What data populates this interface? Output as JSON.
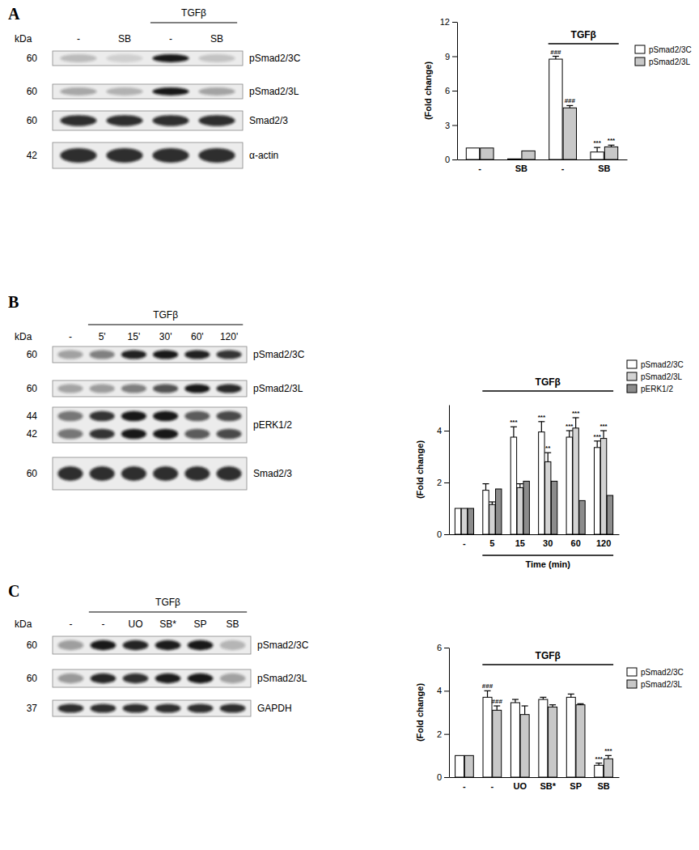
{
  "panels": [
    {
      "label": "A",
      "blot": {
        "kda_label": "kDa",
        "groups": [
          {
            "text": "TGFβ",
            "from": 2,
            "to": 3
          }
        ],
        "lanes": [
          "-",
          "SB",
          "-",
          "SB"
        ],
        "rows": [
          {
            "kda": [
              60
            ],
            "label": "pSmad2/3C"
          },
          {
            "kda": [
              60
            ],
            "label": "pSmad2/3L"
          },
          {
            "kda": [
              60
            ],
            "label": "Smad2/3"
          },
          {
            "kda": [
              42
            ],
            "label": "α-actin"
          }
        ]
      }
    },
    {
      "label": "B",
      "blot": {
        "kda_label": "kDa",
        "groups": [
          {
            "text": "TGFβ",
            "from": 1,
            "to": 5
          }
        ],
        "lanes": [
          "-",
          "5'",
          "15'",
          "30'",
          "60'",
          "120'"
        ],
        "rows": [
          {
            "kda": [
              60
            ],
            "label": "pSmad2/3C"
          },
          {
            "kda": [
              60
            ],
            "label": "pSmad2/3L"
          },
          {
            "kda": [
              44,
              42
            ],
            "label": "pERK1/2"
          },
          {
            "kda": [
              60
            ],
            "label": "Smad2/3"
          }
        ]
      }
    },
    {
      "label": "C",
      "blot": {
        "kda_label": "kDa",
        "groups": [
          {
            "text": "TGFβ",
            "from": 1,
            "to": 5
          }
        ],
        "lanes": [
          "-",
          "-",
          "UO",
          "SB*",
          "SP",
          "SB"
        ],
        "rows": [
          {
            "kda": [
              60
            ],
            "label": "pSmad2/3C"
          },
          {
            "kda": [
              60
            ],
            "label": "pSmad2/3L"
          },
          {
            "kda": [
              37
            ],
            "label": "GAPDH"
          }
        ]
      }
    }
  ],
  "chart_data": [
    {
      "type": "bar",
      "ylabel": "(Fold change)",
      "legend": "upper right",
      "categories": [
        "-",
        "SB",
        "-",
        "SB"
      ],
      "ylim": [
        0,
        12
      ],
      "yticks": [
        0,
        3,
        6,
        9,
        12
      ],
      "group_labels": [
        {
          "text": "TGFβ",
          "from": 2,
          "to": 3
        }
      ],
      "series": [
        {
          "name": "pSmad2/3C",
          "color": "#ffffff",
          "values": [
            1,
            0.05,
            8.75,
            0.65
          ],
          "errors": [
            null,
            null,
            0.25,
            0.4
          ]
        },
        {
          "name": "pSmad2/3L",
          "color": "#c8c8c8",
          "values": [
            1,
            0.75,
            4.5,
            1.1
          ],
          "errors": [
            null,
            null,
            0.2,
            0.15
          ]
        }
      ],
      "annotations": [
        {
          "series": 0,
          "index": 2,
          "text": "###"
        },
        {
          "series": 1,
          "index": 2,
          "text": "###"
        },
        {
          "series": 0,
          "index": 3,
          "text": "***"
        },
        {
          "series": 1,
          "index": 3,
          "text": "***"
        }
      ]
    },
    {
      "type": "bar",
      "ylabel": "(Fold change)",
      "xlabel": "Time (min)",
      "legend": "upper right",
      "categories": [
        "-",
        "5",
        "15",
        "30",
        "60",
        "120"
      ],
      "ylim": [
        0,
        5
      ],
      "yticks": [
        0,
        2,
        4
      ],
      "group_labels": [
        {
          "text": "TGFβ",
          "from": 1,
          "to": 5
        }
      ],
      "series": [
        {
          "name": "pSmad2/3C",
          "color": "#ffffff",
          "values": [
            1,
            1.7,
            3.75,
            3.95,
            3.75,
            3.35
          ],
          "errors": [
            null,
            0.25,
            0.4,
            0.4,
            0.25,
            0.25
          ]
        },
        {
          "name": "pSmad2/3L",
          "color": "#d3d3d3",
          "values": [
            1,
            1.15,
            1.8,
            2.8,
            4.1,
            3.7
          ],
          "errors": [
            null,
            0.1,
            0.15,
            0.35,
            0.4,
            0.3
          ]
        },
        {
          "name": "pERK1/2",
          "color": "#8c8c8c",
          "values": [
            1,
            1.75,
            2.05,
            2.05,
            1.3,
            1.5
          ]
        }
      ],
      "annotations": [
        {
          "series": 0,
          "index": 2,
          "text": "***"
        },
        {
          "series": 0,
          "index": 3,
          "text": "***"
        },
        {
          "series": 0,
          "index": 4,
          "text": "***"
        },
        {
          "series": 0,
          "index": 5,
          "text": "***"
        },
        {
          "series": 1,
          "index": 3,
          "text": "**"
        },
        {
          "series": 1,
          "index": 4,
          "text": "***"
        },
        {
          "series": 1,
          "index": 5,
          "text": "***"
        }
      ]
    },
    {
      "type": "bar",
      "ylabel": "(Fold change)",
      "legend": "upper right",
      "categories": [
        "-",
        "-",
        "UO",
        "SB*",
        "SP",
        "SB"
      ],
      "ylim": [
        0,
        6
      ],
      "yticks": [
        0,
        2,
        4,
        6
      ],
      "group_labels": [
        {
          "text": "TGFβ",
          "from": 1,
          "to": 5
        }
      ],
      "series": [
        {
          "name": "pSmad2/3C",
          "color": "#ffffff",
          "values": [
            1,
            3.7,
            3.45,
            3.6,
            3.7,
            0.55
          ],
          "errors": [
            null,
            0.3,
            0.15,
            0.1,
            0.15,
            0.1
          ]
        },
        {
          "name": "pSmad2/3L",
          "color": "#c8c8c8",
          "values": [
            1,
            3.1,
            2.9,
            3.25,
            3.35,
            0.85
          ],
          "errors": [
            null,
            0.2,
            0.4,
            0.1,
            0.05,
            0.15
          ]
        }
      ],
      "annotations": [
        {
          "series": 0,
          "index": 1,
          "text": "###"
        },
        {
          "series": 1,
          "index": 1,
          "text": "###"
        },
        {
          "series": 0,
          "index": 5,
          "text": "***"
        },
        {
          "series": 1,
          "index": 5,
          "text": "***"
        }
      ]
    }
  ]
}
